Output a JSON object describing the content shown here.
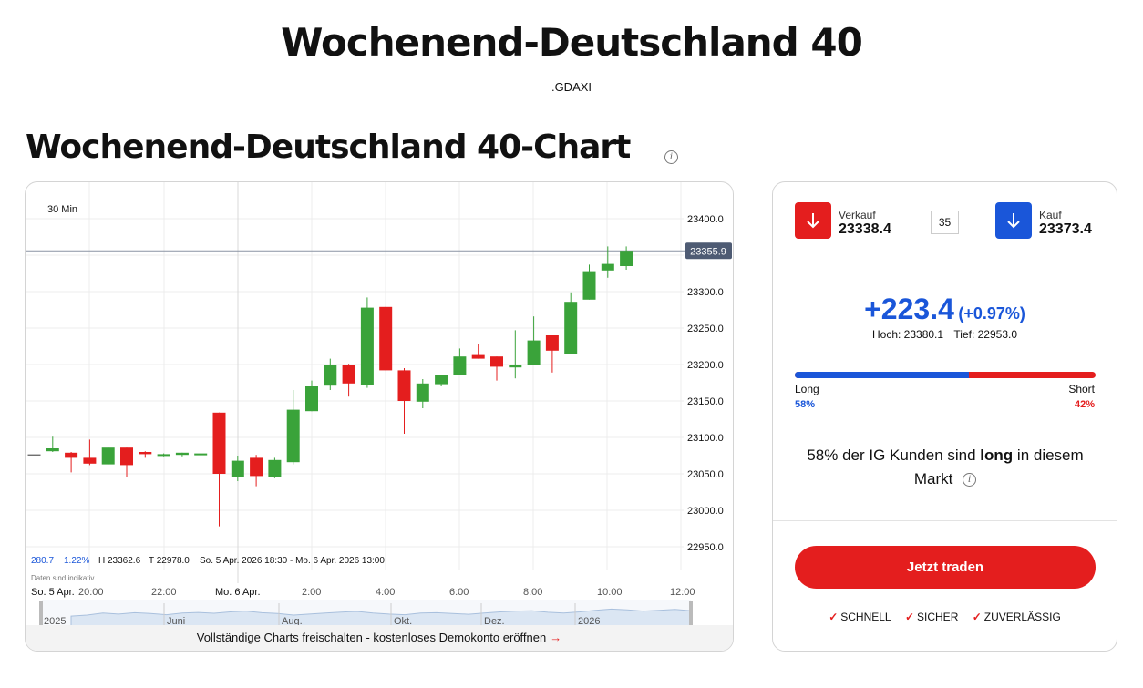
{
  "header": {
    "title": "Wochenend-Deutschland 40",
    "ticker": ".GDAXI",
    "chart_heading": "Wochenend-Deutschland 40-Chart"
  },
  "chart": {
    "timeframe": "30 Min",
    "current_price_tag": "23355.9",
    "stats": {
      "change": "280.7",
      "change_pct": "1.22%",
      "high": "H 23362.6",
      "low": "T 22978.0",
      "range": "So. 5 Apr. 2026 18:30 - Mo. 6 Apr. 2026 13:00"
    },
    "indicative_note": "Daten sind indikativ",
    "time_labels": [
      "So. 5 Apr.",
      "20:00",
      "22:00",
      "Mo. 6 Apr.",
      "2:00",
      "4:00",
      "6:00",
      "8:00",
      "10:00",
      "12:00"
    ],
    "overview_labels": [
      "2025",
      "Juni",
      "Aug.",
      "Okt.",
      "Dez.",
      "2026"
    ],
    "unlock_text": "Vollständige Charts freischalten - kostenloses Demokonto eröffnen",
    "colors": {
      "up": "#3aa33a",
      "down": "#e41e1e"
    }
  },
  "chart_data": {
    "type": "candlestick",
    "ylim": [
      22925,
      23425
    ],
    "yticks": [
      23400,
      23350,
      23300,
      23250,
      23200,
      23150,
      23100,
      23050,
      23000,
      22950
    ],
    "candles": [
      {
        "o": 23076,
        "h": 23076,
        "l": 23076,
        "c": 23076
      },
      {
        "o": 23081,
        "h": 23101,
        "l": 23080,
        "c": 23085
      },
      {
        "o": 23079,
        "h": 23080,
        "l": 23052,
        "c": 23072
      },
      {
        "o": 23072,
        "h": 23097,
        "l": 23062,
        "c": 23064
      },
      {
        "o": 23063,
        "h": 23086,
        "l": 23063,
        "c": 23086
      },
      {
        "o": 23086,
        "h": 23086,
        "l": 23045,
        "c": 23062
      },
      {
        "o": 23080,
        "h": 23081,
        "l": 23072,
        "c": 23077
      },
      {
        "o": 23076,
        "h": 23078,
        "l": 23074,
        "c": 23077
      },
      {
        "o": 23076,
        "h": 23079,
        "l": 23074,
        "c": 23079
      },
      {
        "o": 23078,
        "h": 23078,
        "l": 23078,
        "c": 23078
      },
      {
        "o": 23134,
        "h": 23134,
        "l": 22978,
        "c": 23050
      },
      {
        "o": 23045,
        "h": 23075,
        "l": 23040,
        "c": 23068
      },
      {
        "o": 23072,
        "h": 23076,
        "l": 23033,
        "c": 23047
      },
      {
        "o": 23046,
        "h": 23072,
        "l": 23044,
        "c": 23069
      },
      {
        "o": 23066,
        "h": 23165,
        "l": 23063,
        "c": 23138
      },
      {
        "o": 23136,
        "h": 23178,
        "l": 23136,
        "c": 23170
      },
      {
        "o": 23171,
        "h": 23208,
        "l": 23165,
        "c": 23199
      },
      {
        "o": 23200,
        "h": 23201,
        "l": 23156,
        "c": 23174
      },
      {
        "o": 23172,
        "h": 23292,
        "l": 23168,
        "c": 23278
      },
      {
        "o": 23279,
        "h": 23279,
        "l": 23192,
        "c": 23192
      },
      {
        "o": 23192,
        "h": 23195,
        "l": 23105,
        "c": 23150
      },
      {
        "o": 23149,
        "h": 23180,
        "l": 23140,
        "c": 23174
      },
      {
        "o": 23173,
        "h": 23186,
        "l": 23170,
        "c": 23185
      },
      {
        "o": 23185,
        "h": 23222,
        "l": 23185,
        "c": 23211
      },
      {
        "o": 23213,
        "h": 23228,
        "l": 23208,
        "c": 23208
      },
      {
        "o": 23211,
        "h": 23211,
        "l": 23178,
        "c": 23197
      },
      {
        "o": 23196,
        "h": 23247,
        "l": 23181,
        "c": 23200
      },
      {
        "o": 23199,
        "h": 23266,
        "l": 23199,
        "c": 23233
      },
      {
        "o": 23240,
        "h": 23240,
        "l": 23189,
        "c": 23219
      },
      {
        "o": 23215,
        "h": 23299,
        "l": 23215,
        "c": 23286
      },
      {
        "o": 23289,
        "h": 23337,
        "l": 23289,
        "c": 23328
      },
      {
        "o": 23329,
        "h": 23362,
        "l": 23319,
        "c": 23338
      },
      {
        "o": 23335,
        "h": 23362,
        "l": 23330,
        "c": 23356
      }
    ],
    "overview_series": [
      0.45,
      0.5,
      0.6,
      0.55,
      0.62,
      0.58,
      0.52,
      0.6,
      0.63,
      0.59,
      0.66,
      0.7,
      0.62,
      0.58,
      0.5,
      0.55,
      0.6,
      0.65,
      0.68,
      0.6,
      0.55,
      0.52,
      0.6,
      0.62,
      0.58,
      0.54,
      0.6,
      0.66,
      0.7,
      0.72,
      0.64,
      0.6,
      0.66,
      0.74,
      0.8,
      0.76,
      0.7,
      0.74,
      0.78,
      0.72
    ]
  },
  "trade": {
    "sell_label": "Verkauf",
    "sell_price": "23338.4",
    "spread": "35",
    "buy_label": "Kauf",
    "buy_price": "23373.4",
    "change_main": "+223.4",
    "change_pct": "(+0.97%)",
    "high": "Hoch: 23380.1",
    "low": "Tief: 22953.0",
    "long_label": "Long",
    "short_label": "Short",
    "long_pct": "58%",
    "short_pct": "42%",
    "long_fraction": 0.58,
    "sentiment_pre": "58% der IG Kunden sind ",
    "sentiment_bold": "long",
    "sentiment_post": " in diesem Markt",
    "cta": "Jetzt traden",
    "badges": [
      "SCHNELL",
      "SICHER",
      "ZUVERLÄSSIG"
    ],
    "colors": {
      "sell": "#e41e1e",
      "buy": "#1a56d9"
    }
  }
}
